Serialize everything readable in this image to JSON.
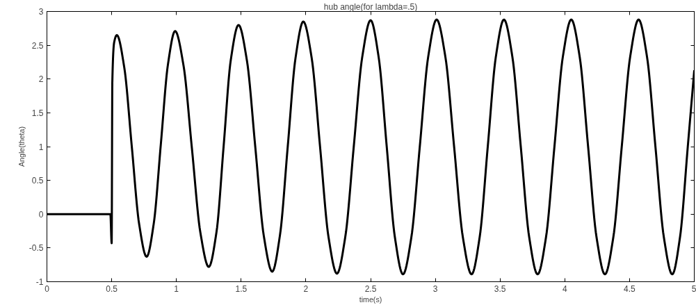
{
  "chart_data": {
    "type": "line",
    "title": "hub angle(for lambda=.5)",
    "xlabel": "time(s)",
    "ylabel": "Angle(theta)",
    "xlim": [
      0,
      5
    ],
    "ylim": [
      -1,
      3
    ],
    "xticks": [
      0,
      0.5,
      1,
      1.5,
      2,
      2.5,
      3,
      3.5,
      4,
      4.5,
      5
    ],
    "yticks": [
      -1,
      -0.5,
      0,
      0.5,
      1,
      1.5,
      2,
      2.5,
      3
    ],
    "grid": false,
    "marker": "none",
    "line_style": "solid",
    "series": [
      {
        "color": "#000000",
        "x": [
          0,
          0.49,
          0.5,
          0.505,
          0.52,
          0.54,
          0.5975,
          0.655,
          0.7125,
          0.77,
          0.825,
          0.88,
          0.935,
          0.99,
          1.055,
          1.12,
          1.185,
          1.25,
          1.31,
          1.365,
          1.42,
          1.48,
          1.545,
          1.61,
          1.675,
          1.74,
          1.8,
          1.86,
          1.92,
          1.98,
          2.045,
          2.11,
          2.175,
          2.24,
          2.305,
          2.37,
          2.435,
          2.5,
          2.5625,
          2.625,
          2.6875,
          2.75,
          2.815,
          2.88,
          2.945,
          3.01,
          3.0775,
          3.145,
          3.2125,
          3.28,
          3.3425,
          3.405,
          3.4675,
          3.53,
          3.595,
          3.66,
          3.725,
          3.79,
          3.855,
          3.92,
          3.985,
          4.05,
          4.115,
          4.18,
          4.245,
          4.31,
          4.375,
          4.44,
          4.505,
          4.57,
          4.635,
          4.7,
          4.765,
          4.83,
          4.89,
          4.95,
          5.0
        ],
        "values": [
          0,
          0,
          -0.43,
          1.95,
          2.55,
          2.65,
          2.17,
          1.01,
          -0.15,
          -0.63,
          -0.14,
          1.04,
          2.22,
          2.71,
          2.2,
          0.97,
          -0.27,
          -0.78,
          -0.26,
          1.01,
          2.28,
          2.8,
          2.27,
          0.98,
          -0.32,
          -0.85,
          -0.31,
          1.0,
          2.31,
          2.85,
          2.31,
          0.99,
          -0.34,
          -0.88,
          -0.33,
          1.0,
          2.32,
          2.87,
          2.32,
          0.99,
          -0.34,
          -0.89,
          -0.34,
          1.0,
          2.33,
          2.88,
          2.33,
          1.0,
          -0.34,
          -0.89,
          -0.34,
          1.0,
          2.33,
          2.88,
          2.33,
          1.0,
          -0.34,
          -0.89,
          -0.34,
          1.0,
          2.33,
          2.88,
          2.33,
          1.0,
          -0.34,
          -0.89,
          -0.34,
          1.0,
          2.33,
          2.88,
          2.33,
          1.0,
          -0.34,
          -0.89,
          -0.34,
          1.0,
          2.13
        ]
      }
    ]
  }
}
